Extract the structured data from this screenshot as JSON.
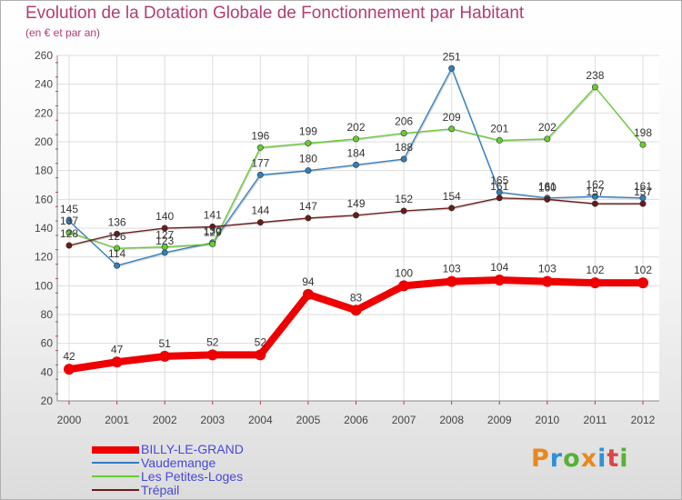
{
  "title": "Evolution de la Dotation Globale de Fonctionnement par Habitant",
  "subtitle": "(en € et par an)",
  "logo": {
    "text": "Proxiti",
    "colors": [
      "#e8881c",
      "#2f8fd8",
      "#58b038",
      "#e8881c",
      "#2f8fd8",
      "#d84848",
      "#58b038"
    ]
  },
  "chart_data": {
    "type": "line",
    "title": "Evolution de la Dotation Globale de Fonctionnement par Habitant",
    "subtitle": "(en € et par an)",
    "xlabel": "",
    "ylabel": "",
    "categories": [
      "2000",
      "2001",
      "2002",
      "2003",
      "2004",
      "2005",
      "2006",
      "2007",
      "2008",
      "2009",
      "2010",
      "2011",
      "2012"
    ],
    "ylim": [
      20,
      260
    ],
    "yticks": [
      "20",
      "40",
      "60",
      "80",
      "100",
      "120",
      "140",
      "160",
      "180",
      "200",
      "220",
      "240",
      "260"
    ],
    "grid": true,
    "legend_position": "bottom-left",
    "series": [
      {
        "name": "BILLY-LE-GRAND",
        "color": "#ee0000",
        "values": [
          42,
          47,
          51,
          52,
          52,
          94,
          83,
          100,
          103,
          104,
          103,
          102,
          102
        ]
      },
      {
        "name": "Vaudemange",
        "color": "#2f7ec0",
        "values": [
          145,
          114,
          123,
          130,
          177,
          180,
          184,
          188,
          251,
          165,
          161,
          162,
          161
        ]
      },
      {
        "name": "Les Petites-Loges",
        "color": "#66cc33",
        "values": [
          137,
          126,
          127,
          129,
          196,
          199,
          202,
          206,
          209,
          201,
          202,
          238,
          198
        ]
      },
      {
        "name": "Trépail",
        "color": "#6b1a1a",
        "values": [
          128,
          136,
          140,
          141,
          144,
          147,
          149,
          152,
          154,
          161,
          160,
          157,
          157
        ]
      }
    ],
    "data_labels": [
      [
        "42",
        "47",
        "51",
        "52",
        "52",
        "94",
        "83",
        "100",
        "103",
        "104",
        "103",
        "102",
        "102"
      ],
      [
        "145",
        "114",
        "123",
        "130",
        "177",
        "180",
        "184",
        "188",
        "251",
        "165",
        "161",
        "162",
        "161"
      ],
      [
        "137",
        "126",
        "127",
        "129",
        "196",
        "199",
        "202",
        "206",
        "209",
        "201",
        "202",
        "238",
        "198"
      ],
      [
        "128",
        "136",
        "140",
        "141",
        "144",
        "147",
        "149",
        "152",
        "154",
        "161",
        "160",
        "157",
        "157"
      ]
    ]
  }
}
